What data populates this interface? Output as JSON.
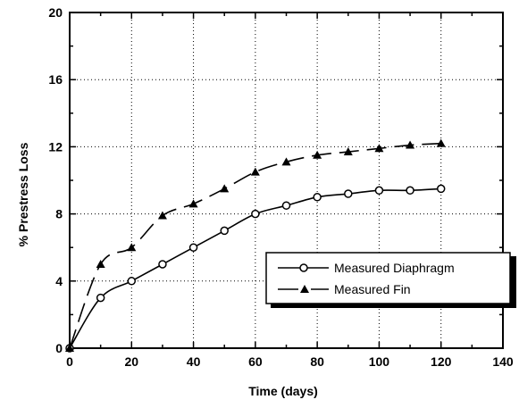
{
  "chart_data": {
    "type": "line",
    "xlabel": "Time (days)",
    "ylabel": "% Prestress Loss",
    "xlim": [
      0,
      140
    ],
    "ylim": [
      0,
      20
    ],
    "xticks": [
      "0",
      "20",
      "40",
      "60",
      "80",
      "100",
      "120",
      "140"
    ],
    "yticks": [
      "0",
      "4",
      "8",
      "12",
      "16",
      "20"
    ],
    "grid": "dotted major gridlines",
    "legend_position": "bottom-right",
    "series": [
      {
        "name": "Measured Diaphragm",
        "marker": "open-circle",
        "line_style": "solid",
        "x": [
          0,
          10,
          20,
          30,
          40,
          50,
          60,
          70,
          80,
          90,
          100,
          110,
          120
        ],
        "y": [
          0,
          3,
          4,
          5,
          6,
          7,
          8,
          8.5,
          9,
          9.2,
          9.4,
          9.4,
          9.5
        ]
      },
      {
        "name": "Measured Fin",
        "marker": "filled-triangle",
        "line_style": "dashed",
        "x": [
          0,
          10,
          20,
          30,
          40,
          50,
          60,
          70,
          80,
          90,
          100,
          110,
          120
        ],
        "y": [
          0,
          5,
          6,
          7.9,
          8.6,
          9.5,
          10.5,
          11.1,
          11.5,
          11.7,
          11.9,
          12.1,
          12.2
        ]
      }
    ]
  }
}
